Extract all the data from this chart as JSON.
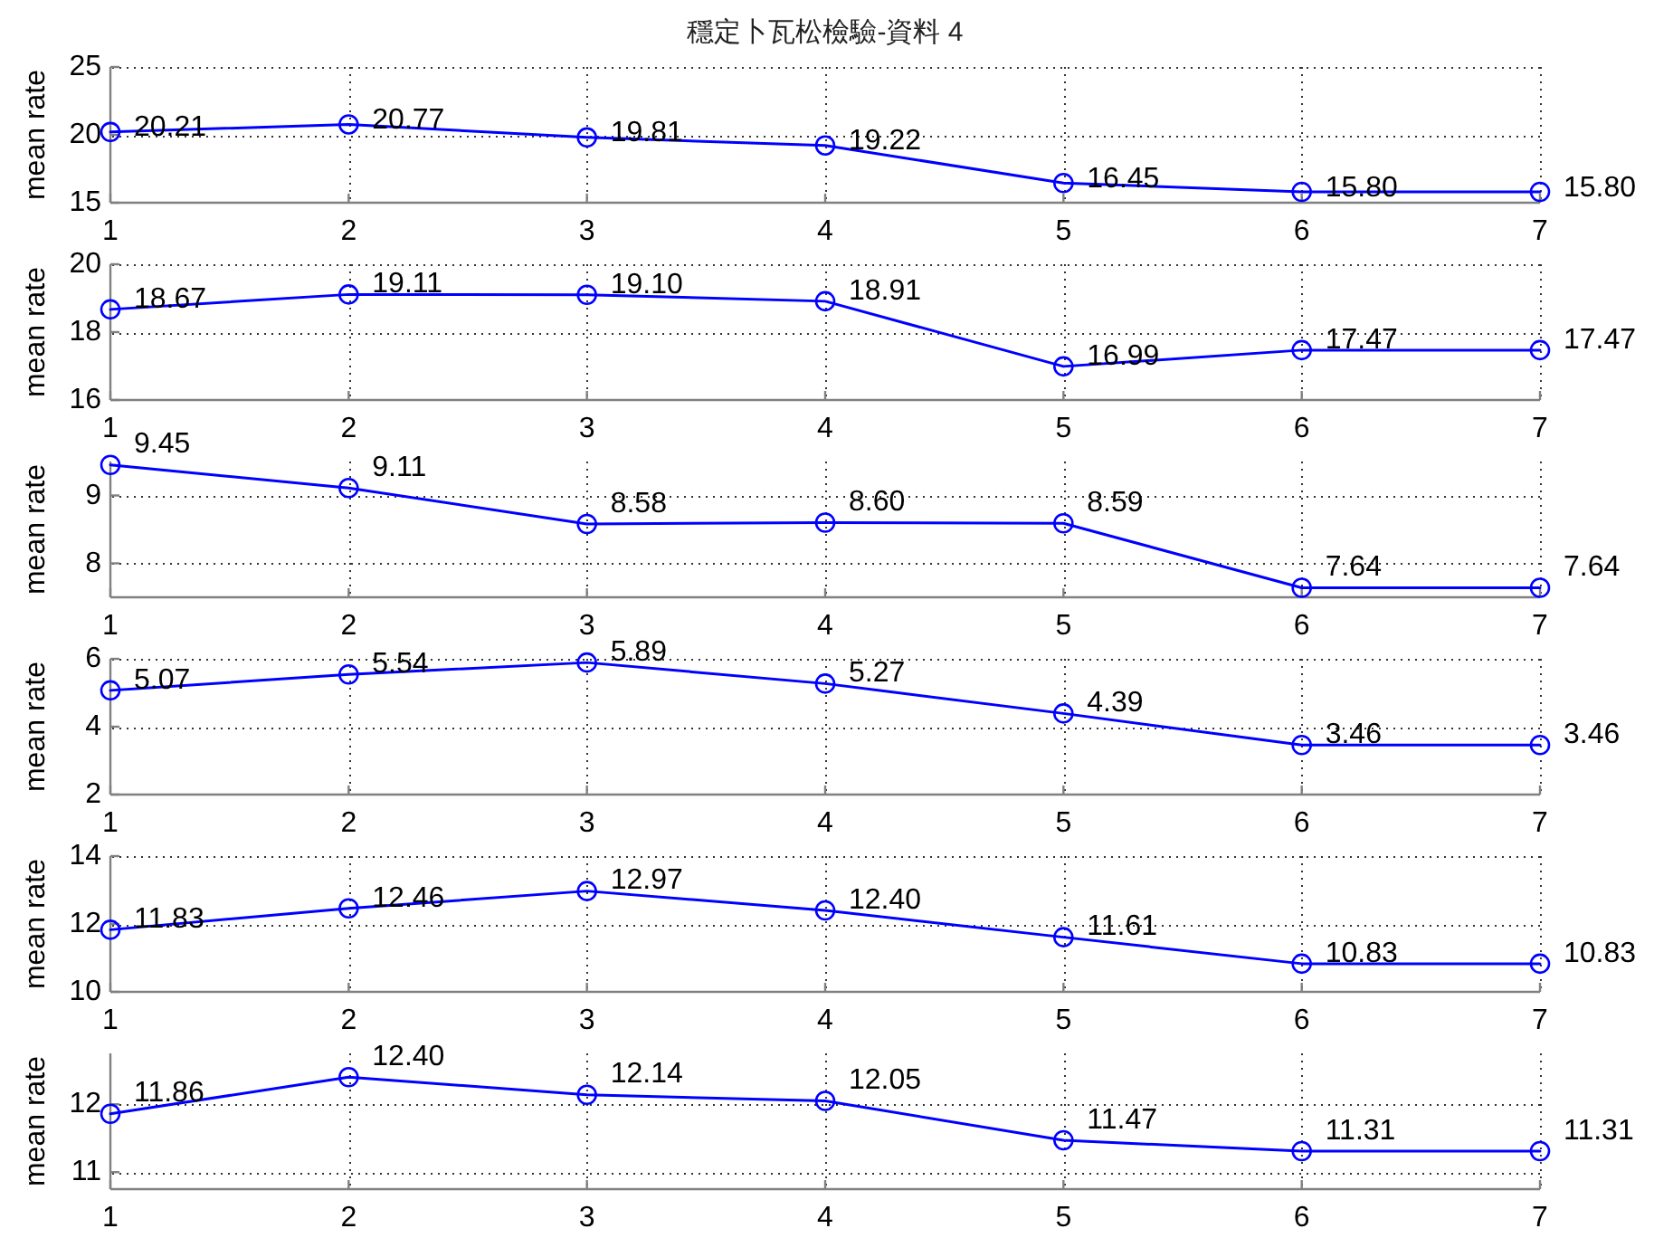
{
  "chart_data": [
    {
      "type": "line",
      "title": "穩定卜瓦松檢驗-資料 4",
      "ylabel": "mean rate",
      "x": [
        1,
        2,
        3,
        4,
        5,
        6,
        7
      ],
      "xlim": [
        1,
        7
      ],
      "xticks": [
        1,
        2,
        3,
        4,
        5,
        6,
        7
      ],
      "ylim": [
        15,
        25
      ],
      "yticks": [
        15,
        20,
        25
      ],
      "grid": true,
      "marker": "circle",
      "series": [
        {
          "color": "#0000ff",
          "values": [
            20.21,
            20.77,
            19.81,
            19.22,
            16.45,
            15.8,
            15.8
          ],
          "value_labels": [
            "20.21",
            "20.77",
            "19.81",
            "19.22",
            "16.45",
            "15.80",
            "15.80"
          ]
        }
      ]
    },
    {
      "type": "line",
      "ylabel": "mean rate",
      "x": [
        1,
        2,
        3,
        4,
        5,
        6,
        7
      ],
      "xlim": [
        1,
        7
      ],
      "xticks": [
        1,
        2,
        3,
        4,
        5,
        6,
        7
      ],
      "ylim": [
        16,
        20
      ],
      "yticks": [
        16,
        18,
        20
      ],
      "grid": true,
      "marker": "circle",
      "series": [
        {
          "color": "#0000ff",
          "values": [
            18.67,
            19.11,
            19.1,
            18.91,
            16.99,
            17.47,
            17.47
          ],
          "value_labels": [
            "18.67",
            "19.11",
            "19.10",
            "18.91",
            "16.99",
            "17.47",
            "17.47"
          ]
        }
      ]
    },
    {
      "type": "line",
      "ylabel": "mean rate",
      "x": [
        1,
        2,
        3,
        4,
        5,
        6,
        7
      ],
      "xlim": [
        1,
        7
      ],
      "xticks": [
        1,
        2,
        3,
        4,
        5,
        6,
        7
      ],
      "ylim": [
        7.5,
        9.5
      ],
      "yticks": [
        8,
        9
      ],
      "grid": true,
      "marker": "circle",
      "series": [
        {
          "color": "#0000ff",
          "values": [
            9.45,
            9.11,
            8.58,
            8.6,
            8.59,
            7.64,
            7.64
          ],
          "value_labels": [
            "9.45",
            "9.11",
            "8.58",
            "8.60",
            "8.59",
            "7.64",
            "7.64"
          ]
        }
      ]
    },
    {
      "type": "line",
      "ylabel": "mean rate",
      "x": [
        1,
        2,
        3,
        4,
        5,
        6,
        7
      ],
      "xlim": [
        1,
        7
      ],
      "xticks": [
        1,
        2,
        3,
        4,
        5,
        6,
        7
      ],
      "ylim": [
        2,
        6
      ],
      "yticks": [
        2,
        4,
        6
      ],
      "grid": true,
      "marker": "circle",
      "series": [
        {
          "color": "#0000ff",
          "values": [
            5.07,
            5.54,
            5.89,
            5.27,
            4.39,
            3.46,
            3.46
          ],
          "value_labels": [
            "5.07",
            "5.54",
            "5.89",
            "5.27",
            "4.39",
            "3.46",
            "3.46"
          ]
        }
      ]
    },
    {
      "type": "line",
      "ylabel": "mean rate",
      "x": [
        1,
        2,
        3,
        4,
        5,
        6,
        7
      ],
      "xlim": [
        1,
        7
      ],
      "xticks": [
        1,
        2,
        3,
        4,
        5,
        6,
        7
      ],
      "ylim": [
        10,
        14
      ],
      "yticks": [
        10,
        12,
        14
      ],
      "grid": true,
      "marker": "circle",
      "series": [
        {
          "color": "#0000ff",
          "values": [
            11.83,
            12.46,
            12.97,
            12.4,
            11.61,
            10.83,
            10.83
          ],
          "value_labels": [
            "11.83",
            "12.46",
            "12.97",
            "12.40",
            "11.61",
            "10.83",
            "10.83"
          ]
        }
      ]
    },
    {
      "type": "line",
      "ylabel": "mean rate",
      "x": [
        1,
        2,
        3,
        4,
        5,
        6,
        7
      ],
      "xlim": [
        1,
        7
      ],
      "xticks": [
        1,
        2,
        3,
        4,
        5,
        6,
        7
      ],
      "ylim": [
        10.75,
        12.75
      ],
      "yticks": [
        11,
        12
      ],
      "grid": true,
      "marker": "circle",
      "series": [
        {
          "color": "#0000ff",
          "values": [
            11.86,
            12.4,
            12.14,
            12.05,
            11.47,
            11.31,
            11.31
          ],
          "value_labels": [
            "11.86",
            "12.40",
            "12.14",
            "12.05",
            "11.47",
            "11.31",
            "11.31"
          ]
        }
      ]
    }
  ]
}
